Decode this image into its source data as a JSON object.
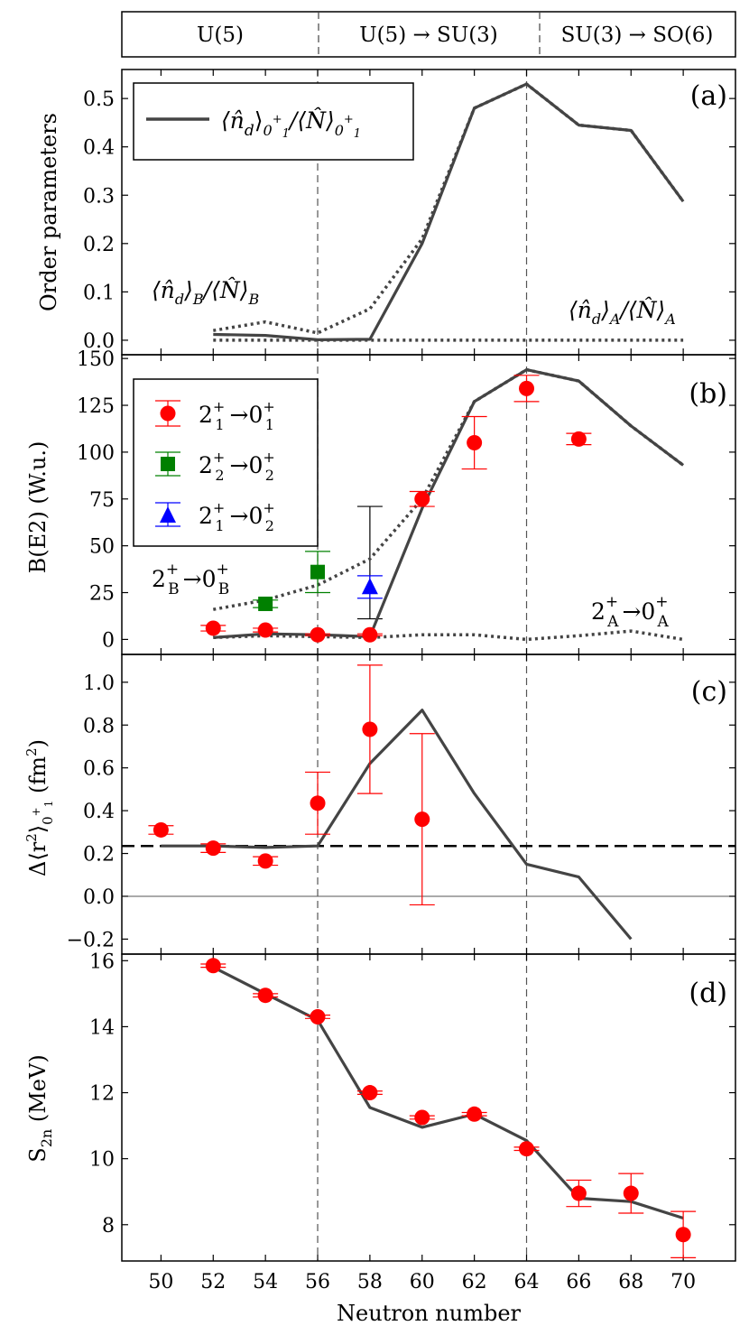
{
  "colors": {
    "theory": "#444444",
    "exp_21_01": "#ff0000",
    "exp_22_02": "#008000",
    "exp_21_02": "#0000ff",
    "ref_line": "#000000"
  },
  "phases": {
    "p1": "U(5)",
    "p2": "U(5) → SU(3)",
    "p3": "SU(3) → SO(6)"
  },
  "xaxis": {
    "label": "Neutron number",
    "ticks": [
      50,
      52,
      54,
      56,
      58,
      60,
      62,
      64,
      66,
      68,
      70
    ],
    "range": [
      48.5,
      72
    ],
    "phase_boundaries": [
      56,
      64
    ]
  },
  "panels": {
    "a": {
      "tag": "(a)",
      "ylabel": "Order parameters",
      "legend": {
        "main": "⟨n̂",
        "sub1": "d",
        "sep": "⟩",
        "sup1": "0",
        "sup1b": "+",
        "sup1c": "1",
        "slash": "/⟨N̂⟩",
        "sub2": "0",
        "sup2": "+",
        "sup2b": "1"
      },
      "label_B": {
        "a": "⟨n̂",
        "b": "d",
        "c": "⟩",
        "d": "B",
        "e": "/⟨N̂⟩",
        "f": "B"
      },
      "label_A": {
        "a": "⟨n̂",
        "b": "d",
        "c": "⟩",
        "d": "A",
        "e": "/⟨N̂⟩",
        "f": "A"
      },
      "yticks": [
        "0.0",
        "0.1",
        "0.2",
        "0.3",
        "0.4",
        "0.5"
      ]
    },
    "b": {
      "tag": "(b)",
      "ylabel": "B(E2) (W.u.)",
      "legend": [
        {
          "state": "2",
          "sup": "+",
          "sub": "1",
          "arrow": "→",
          "final": "0",
          "fsup": "+",
          "fsub": "1"
        },
        {
          "state": "2",
          "sup": "+",
          "sub": "2",
          "arrow": "→",
          "final": "0",
          "fsup": "+",
          "fsub": "2"
        },
        {
          "state": "2",
          "sup": "+",
          "sub": "1",
          "arrow": "→",
          "final": "0",
          "fsup": "+",
          "fsub": "2"
        }
      ],
      "label_B": {
        "a": "2",
        "b": "+",
        "c": "B",
        "d": "→",
        "e": "0",
        "f": "+",
        "g": "B"
      },
      "label_A": {
        "a": "2",
        "b": "+",
        "c": "A",
        "d": "→",
        "e": "0",
        "f": "+",
        "g": "A"
      },
      "yticks": [
        "0",
        "25",
        "50",
        "75",
        "100",
        "125",
        "150"
      ]
    },
    "c": {
      "tag": "(c)",
      "ylabel": {
        "a": "Δ⟨r",
        "b": "2",
        "c": "⟩",
        "d": "0",
        "e": "+",
        "f": "1",
        "g": " (fm",
        "h": "2",
        "i": ")"
      },
      "yticks": [
        "−0.2",
        "0.0",
        "0.2",
        "0.4",
        "0.6",
        "0.8",
        "1.0"
      ]
    },
    "d": {
      "tag": "(d)",
      "ylabel": {
        "a": "S",
        "b": "2n",
        "c": " (MeV)"
      },
      "yticks": [
        "8",
        "10",
        "12",
        "14",
        "16"
      ]
    }
  },
  "chart_data": [
    {
      "panel": "a",
      "type": "line",
      "ylim": [
        -0.03,
        0.56
      ],
      "series": [
        {
          "name": "<n_d>_{0_1^+}/<N>_{0_1^+}",
          "style": "solid",
          "x": [
            52,
            54,
            56,
            58,
            60,
            62,
            64,
            66,
            68,
            70
          ],
          "y": [
            0.012,
            0.01,
            0.001,
            0.002,
            0.2,
            0.48,
            0.53,
            0.445,
            0.434,
            0.287
          ]
        },
        {
          "name": "<n_d>_B/<N>_B",
          "style": "dotted",
          "x": [
            52,
            54,
            56,
            58,
            60,
            62,
            64,
            66,
            68,
            70
          ],
          "y": [
            0.02,
            0.038,
            0.015,
            0.065,
            0.21,
            0.48,
            0.53,
            0.445,
            0.434,
            0.287
          ]
        },
        {
          "name": "<n_d>_A/<N>_A",
          "style": "dotted",
          "x": [
            52,
            54,
            56,
            58,
            60,
            62,
            64,
            66,
            68,
            70
          ],
          "y": [
            0.0,
            0.0,
            0.0,
            0.0,
            0.0,
            0.0,
            0.0,
            0.0,
            0.0,
            0.0
          ]
        }
      ]
    },
    {
      "panel": "b",
      "type": "line",
      "ylim": [
        -8,
        152
      ],
      "series": [
        {
          "name": "theory 2_1^+ -> 0_1^+",
          "style": "solid",
          "x": [
            52,
            54,
            56,
            58,
            60,
            62,
            64,
            66,
            68,
            70
          ],
          "y": [
            1,
            3,
            2.5,
            1.5,
            70,
            127,
            144,
            138,
            114,
            93
          ]
        },
        {
          "name": "2_B^+ -> 0_B^+",
          "style": "dotted",
          "x": [
            52,
            54,
            56,
            58,
            60,
            62,
            64,
            66,
            68,
            70
          ],
          "y": [
            16,
            21,
            29,
            43,
            75,
            127,
            144,
            138,
            114,
            93
          ]
        },
        {
          "name": "2_A^+ -> 0_A^+",
          "style": "dotted",
          "x": [
            52,
            54,
            56,
            58,
            60,
            62,
            64,
            66,
            68,
            70
          ],
          "y": [
            1,
            2,
            1.5,
            1,
            2.5,
            2.5,
            0,
            2,
            4.5,
            0
          ]
        },
        {
          "name": "2_1^+ -> 0_1^+ (exp)",
          "marker": "circle",
          "x": [
            52,
            54,
            56,
            58,
            60,
            62,
            64,
            66
          ],
          "y": [
            6,
            5,
            2.5,
            2.5,
            75,
            105,
            134,
            107
          ],
          "err": [
            1.5,
            1,
            0.5,
            0.5,
            4,
            14,
            7,
            3
          ]
        },
        {
          "name": "2_2^+ -> 0_2^+ (exp)",
          "marker": "square",
          "x": [
            54,
            56
          ],
          "y": [
            19,
            36
          ],
          "err": [
            2,
            11
          ]
        },
        {
          "name": "2_1^+ -> 0_2^+ (exp)",
          "marker": "triangle",
          "x": [
            58
          ],
          "y": [
            28
          ],
          "err": [
            6
          ]
        }
      ],
      "extra_errorbars": [
        {
          "x": 58,
          "low": 11,
          "high": 71
        }
      ]
    },
    {
      "panel": "c",
      "type": "line",
      "ylim": [
        -0.27,
        1.13
      ],
      "reference_line": 0.235,
      "series": [
        {
          "name": "theory",
          "style": "solid",
          "x": [
            50,
            52,
            54,
            56,
            58,
            60,
            62,
            64,
            66,
            68
          ],
          "y": [
            0.235,
            0.235,
            0.228,
            0.235,
            0.62,
            0.87,
            0.48,
            0.15,
            0.09,
            -0.2
          ]
        },
        {
          "name": "exp",
          "marker": "circle",
          "x": [
            50,
            52,
            54,
            56,
            58,
            60
          ],
          "y": [
            0.31,
            0.225,
            0.165,
            0.435,
            0.78,
            0.36
          ],
          "err": [
            0.02,
            0.02,
            0.02,
            0.145,
            0.3,
            0.4
          ]
        }
      ]
    },
    {
      "panel": "d",
      "type": "line",
      "ylim": [
        6.9,
        16.2
      ],
      "series": [
        {
          "name": "theory",
          "style": "solid",
          "x": [
            52,
            54,
            56,
            58,
            60,
            62,
            64,
            66,
            68,
            70
          ],
          "y": [
            15.8,
            15.0,
            14.2,
            11.55,
            10.95,
            11.35,
            10.55,
            8.8,
            8.7,
            8.2
          ]
        },
        {
          "name": "exp",
          "marker": "circle",
          "x": [
            52,
            54,
            56,
            58,
            60,
            62,
            64,
            66,
            68,
            70
          ],
          "y": [
            15.85,
            14.95,
            14.3,
            12.0,
            11.25,
            11.35,
            10.3,
            8.95,
            8.95,
            7.7
          ],
          "err": [
            0.05,
            0.05,
            0.05,
            0.05,
            0.05,
            0.05,
            0.05,
            0.4,
            0.6,
            0.7
          ]
        }
      ]
    }
  ]
}
